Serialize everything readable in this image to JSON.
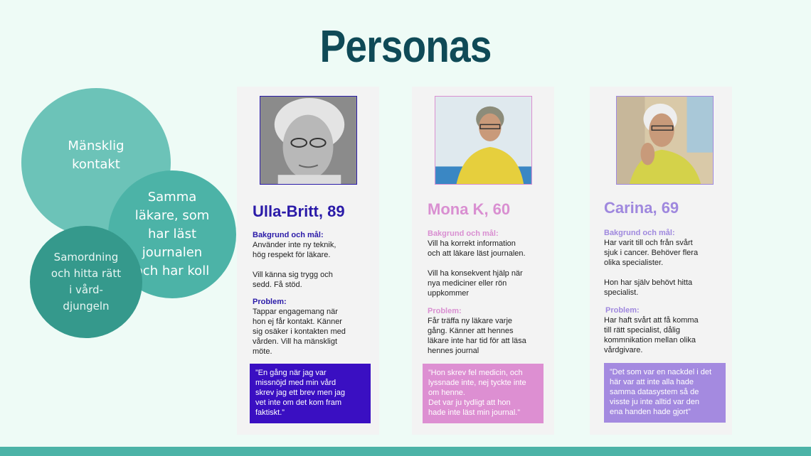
{
  "title": "Personas",
  "circles": {
    "c1": "Mänsklig\nkontakt",
    "c2": "Samma\nläkare, som\nhar läst\njournalen\noch har koll",
    "c3": "Samordning\noch hitta rätt\ni vård-\ndjungeln"
  },
  "personas": [
    {
      "name": "Ulla-Britt, 89",
      "bg_label": "Bakgrund och mål:",
      "bg_text": "Använder inte ny teknik,\nhög respekt för läkare.\n\nVill känna sig trygg och\nsedd. Få stöd.",
      "problem_label": "Problem:",
      "problem_text": "Tappar engagemang när\nhon ej får kontakt. Känner\nsig osäker i kontakten med\nvården. Vill ha mänskligt\nmöte.",
      "quote": "”En gång när jag var\nmissnöjd med min vård\nskrev jag ett brev men jag\nvet inte om det kom fram\nfaktiskt.”",
      "accent": "#2a1aa8",
      "quote_bg": "#3a0fc2",
      "photo_icon": "elderly-woman-portrait-icon"
    },
    {
      "name": "Mona K, 60",
      "bg_label": "Bakgrund och mål:",
      "bg_text": "Vill ha korrekt information\noch att läkare läst journalen.\n\nVill ha konsekvent hjälp när\nnya mediciner eller rön\nuppkommer",
      "problem_label": "Problem:",
      "problem_text": "Får träffa ny läkare varje\ngång. Känner att hennes\nläkare inte har tid för att läsa\nhennes journal",
      "quote": "”Hon skrev fel medicin, och\nlyssnade inte, nej tyckte inte\nom henne.\nDet var ju tydligt att hon\nhade inte läst min journal.”",
      "accent": "#d98fd1",
      "quote_bg": "#dd8fd2",
      "photo_icon": "woman-by-sea-portrait-icon"
    },
    {
      "name": "Carina, 69",
      "bg_label": "Bakgrund och mål:",
      "bg_text": "Har varit till och från svårt\nsjuk i cancer. Behöver flera\nolika specialister.\n\nHon har själv behövt hitta\nspecialist.",
      "problem_label": "Problem:",
      "problem_text": "Har haft svårt att få komma\ntill rätt specialist, dålig\nkommnikation mellan olika\nvårdgivare.",
      "quote": "”Det som var en nackdel i det\nhär var att inte alla hade\nsamma datasystem så de\nvisste ju inte alltid var den\nena handen hade gjort”",
      "accent": "#9f88de",
      "quote_bg": "#a48ae0",
      "photo_icon": "woman-thinking-portrait-icon"
    }
  ]
}
